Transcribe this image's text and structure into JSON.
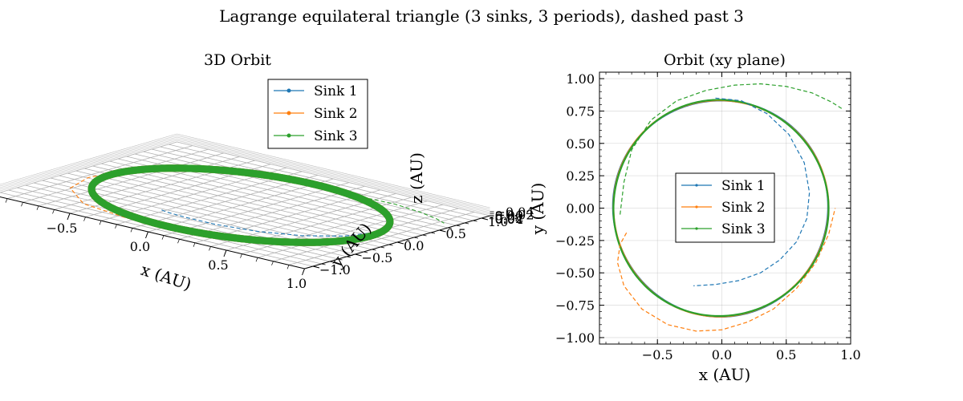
{
  "figure": {
    "suptitle": "Lagrange equilateral triangle (3 sinks, 3 periods), dashed past 3"
  },
  "series_colors": {
    "Sink 1": "#1f77b4",
    "Sink 2": "#ff7f0e",
    "Sink 3": "#2ca02c"
  },
  "chart_data": [
    {
      "type": "line",
      "title": "3D Orbit",
      "projection": "3d",
      "xlabel": "x (AU)",
      "ylabel": "y (AU)",
      "zlabel": "z (AU)",
      "xlim": [
        -1.0,
        1.0
      ],
      "ylim": [
        -1.1,
        1.1
      ],
      "zlim": [
        -0.04,
        0.04
      ],
      "xticks": [
        -0.5,
        0.0,
        0.5,
        1.0
      ],
      "yticks": [
        -1.0,
        -0.5,
        0.0,
        0.5,
        1.0
      ],
      "zticks": [
        -0.04,
        -0.02,
        0.0,
        0.02,
        0.04
      ],
      "xtick_labels": [
        "−0.5",
        "0.0",
        "0.5",
        "1.0"
      ],
      "ytick_labels": [
        "−1.0",
        "−0.5",
        "0.0",
        "0.5",
        "1.0"
      ],
      "ztick_labels": [
        "−0.04",
        "−0.02",
        "0.00",
        "0.02",
        "0.04"
      ],
      "grid": true,
      "legend": "top-center",
      "series": [
        {
          "name": "Sink 1",
          "color": "#1f77b4",
          "marker": "circle",
          "solid_orbit": {
            "shape": "circle",
            "radius": 0.83,
            "z": 0.0
          },
          "dashed_tail": {
            "x": [
              0.83,
              0.78,
              0.62,
              0.4,
              0.15,
              -0.05,
              -0.18,
              -0.25
            ],
            "y": [
              0.05,
              -0.15,
              -0.38,
              -0.53,
              -0.6,
              -0.6,
              -0.58,
              -0.55
            ]
          }
        },
        {
          "name": "Sink 2",
          "color": "#ff7f0e",
          "marker": "circle",
          "solid_orbit": {
            "shape": "circle",
            "radius": 0.83,
            "z": 0.0
          },
          "dashed_tail": {
            "x": [
              -0.88,
              -0.92,
              -0.85,
              -0.6,
              -0.25,
              0.1,
              0.35
            ],
            "y": [
              0.15,
              -0.2,
              -0.55,
              -0.85,
              -0.95,
              -0.9,
              -0.8
            ]
          }
        },
        {
          "name": "Sink 3",
          "color": "#2ca02c",
          "marker": "circle",
          "solid_orbit": {
            "shape": "circle",
            "radius": 0.83,
            "z": 0.0
          },
          "dashed_tail": {
            "x": [
              0.3,
              0.55,
              0.75,
              0.9,
              0.98
            ],
            "y": [
              0.88,
              0.9,
              0.85,
              0.78,
              0.72
            ]
          }
        }
      ]
    },
    {
      "type": "line",
      "title": "Orbit (xy plane)",
      "xlabel": "x (AU)",
      "ylabel": "y (AU)",
      "xlim": [
        -0.95,
        1.0
      ],
      "ylim": [
        -1.05,
        1.05
      ],
      "xticks": [
        -0.5,
        0.0,
        0.5,
        1.0
      ],
      "yticks": [
        -1.0,
        -0.75,
        -0.5,
        -0.25,
        0.0,
        0.25,
        0.5,
        0.75,
        1.0
      ],
      "xtick_labels": [
        "−0.5",
        "0.0",
        "0.5",
        "1.0"
      ],
      "ytick_labels": [
        "−1.00",
        "−0.75",
        "−0.50",
        "−0.25",
        "0.00",
        "0.25",
        "0.50",
        "0.75",
        "1.00"
      ],
      "grid": true,
      "legend": "center",
      "series": [
        {
          "name": "Sink 1",
          "color": "#1f77b4",
          "marker": "circle",
          "solid_orbit": {
            "cx": -0.01,
            "cy": 0.0,
            "r": 0.835
          },
          "dashed_tail": {
            "x": [
              -0.05,
              0.15,
              0.35,
              0.52,
              0.64,
              0.68,
              0.66,
              0.58,
              0.45,
              0.3,
              0.13,
              -0.05,
              -0.22
            ],
            "y": [
              0.85,
              0.83,
              0.73,
              0.57,
              0.35,
              0.12,
              -0.08,
              -0.26,
              -0.4,
              -0.5,
              -0.56,
              -0.59,
              -0.6
            ]
          }
        },
        {
          "name": "Sink 2",
          "color": "#ff7f0e",
          "marker": "circle",
          "solid_orbit": {
            "cx": -0.01,
            "cy": 0.0,
            "r": 0.835
          },
          "dashed_tail": {
            "x": [
              -0.74,
              -0.79,
              -0.81,
              -0.76,
              -0.62,
              -0.42,
              -0.2,
              0.0,
              0.2,
              0.4,
              0.58,
              0.73,
              0.83,
              0.88
            ],
            "y": [
              -0.19,
              -0.28,
              -0.42,
              -0.6,
              -0.78,
              -0.9,
              -0.95,
              -0.94,
              -0.88,
              -0.78,
              -0.62,
              -0.42,
              -0.2,
              0.0
            ]
          }
        },
        {
          "name": "Sink 3",
          "color": "#2ca02c",
          "marker": "circle",
          "solid_orbit": {
            "cx": -0.01,
            "cy": 0.0,
            "r": 0.835
          },
          "dashed_tail": {
            "x": [
              -0.79,
              -0.76,
              -0.7,
              -0.55,
              -0.35,
              -0.12,
              0.1,
              0.3,
              0.5,
              0.7,
              0.85,
              0.93
            ],
            "y": [
              -0.05,
              0.2,
              0.45,
              0.68,
              0.83,
              0.91,
              0.95,
              0.96,
              0.94,
              0.89,
              0.82,
              0.77
            ]
          }
        }
      ]
    }
  ]
}
